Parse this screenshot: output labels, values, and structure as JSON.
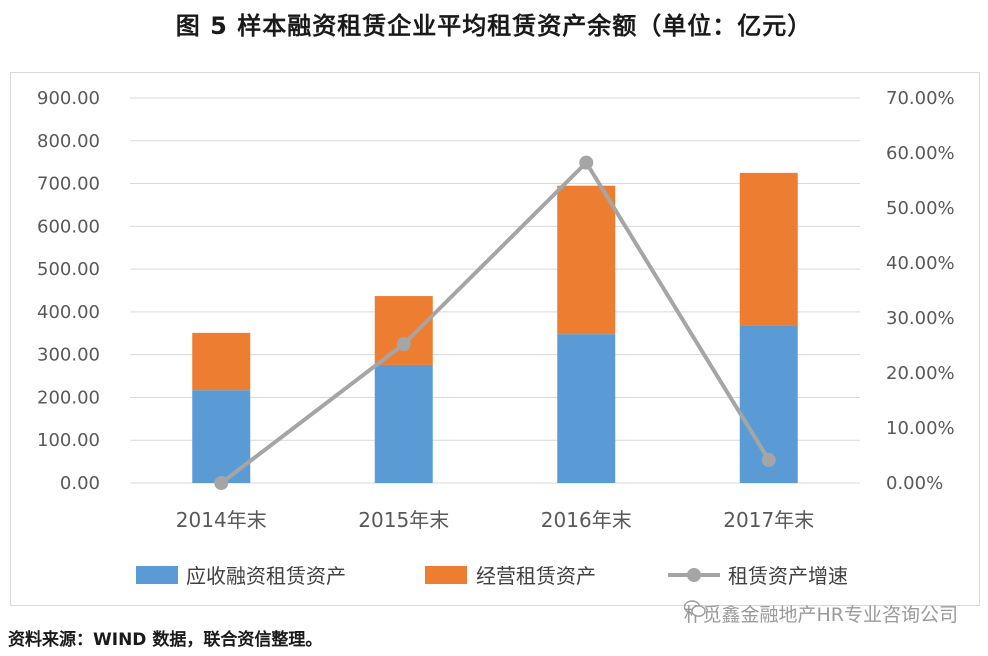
{
  "title": "图 5   样本融资租赁企业平均租赁资产余额（单位：亿元）",
  "source": "资料来源：WIND 数据，联合资信整理。",
  "watermark": "朴觅鑫金融地产HR专业咨询公司",
  "colors": {
    "finance_lease": "#5b9bd5",
    "operating_lease": "#ed7d31",
    "growth": "#a5a5a5",
    "grid": "#d9d9d9"
  },
  "chart_data": {
    "type": "bar",
    "stacked": true,
    "categories": [
      "2014年末",
      "2015年末",
      "2016年末",
      "2017年末"
    ],
    "series": [
      {
        "name": "应收融资租赁资产",
        "type": "bar",
        "axis": "left",
        "values": [
          217,
          276,
          348,
          368
        ]
      },
      {
        "name": "经营租赁资产",
        "type": "bar",
        "axis": "left",
        "values": [
          134,
          161,
          347,
          357
        ]
      },
      {
        "name": "租赁资产增速",
        "type": "line",
        "axis": "right",
        "values": [
          0.0,
          0.2525,
          0.5825,
          0.042
        ]
      }
    ],
    "y_left": {
      "min": 0,
      "max": 900,
      "step": 100,
      "tick_labels": [
        "0.00",
        "100.00",
        "200.00",
        "300.00",
        "400.00",
        "500.00",
        "600.00",
        "700.00",
        "800.00",
        "900.00"
      ]
    },
    "y_right": {
      "min": 0,
      "max": 0.7,
      "step": 0.1,
      "tick_labels": [
        "0.00%",
        "10.00%",
        "20.00%",
        "30.00%",
        "40.00%",
        "50.00%",
        "60.00%",
        "70.00%"
      ]
    },
    "grid": "horizontal",
    "legend_position": "bottom"
  }
}
